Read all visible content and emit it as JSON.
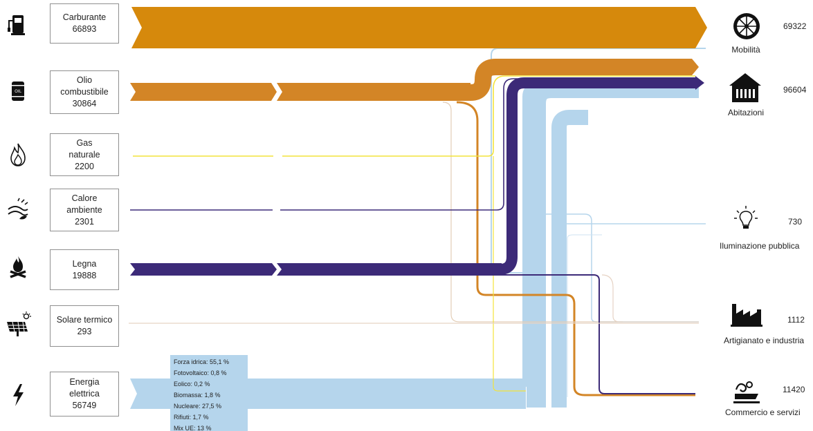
{
  "colors": {
    "carburante": "#d6890c",
    "olio": "#d38526",
    "gas": "#f3e33a",
    "calore": "#3c2a78",
    "legna": "#3c2a78",
    "solare": "#e6d3c4",
    "elettrica": "#b5d5ec",
    "thin_brown": "#c9a36d",
    "box_border": "#8f8f8f"
  },
  "sources": [
    {
      "label_lines": [
        "Carburante"
      ],
      "value": "66893",
      "icon": "fuel-pump-icon"
    },
    {
      "label_lines": [
        "Olio",
        "combustibile"
      ],
      "value": "30864",
      "icon": "oil-barrel-icon"
    },
    {
      "label_lines": [
        "Gas",
        "naturale"
      ],
      "value": "2200",
      "icon": "gas-flame-icon"
    },
    {
      "label_lines": [
        "Calore",
        "ambiente"
      ],
      "value": "2301",
      "icon": "ambient-heat-icon"
    },
    {
      "label_lines": [
        "Legna"
      ],
      "value": "19888",
      "icon": "wood-fire-icon"
    },
    {
      "label_lines": [
        "Solare termico"
      ],
      "value": "293",
      "icon": "solar-panel-icon"
    },
    {
      "label_lines": [
        "Energia",
        "elettrica"
      ],
      "value": "56749",
      "icon": "lightning-icon"
    }
  ],
  "destinations": [
    {
      "label": "Mobilità",
      "value": "69322",
      "icon": "wheel-icon"
    },
    {
      "label": "Abitazioni",
      "value": "96604",
      "icon": "house-icon"
    },
    {
      "label": "Iluminazione pubblica",
      "value": "730",
      "icon": "light-bulb-icon"
    },
    {
      "label": "Artigianato e industria",
      "value": "1112",
      "icon": "factory-icon"
    },
    {
      "label": "Commercio e servizi",
      "value": "11420",
      "icon": "commerce-icon"
    }
  ],
  "electricity_mix": [
    "Forza idrica: 55,1 %",
    "Fotovoltaico: 0,8 %",
    "Eolico: 0,2 %",
    "Biomassa: 1,8 %",
    "Nucleare: 27,5 %",
    "Rifiuti: 1,7 %",
    "Mix UE: 13 %"
  ]
}
